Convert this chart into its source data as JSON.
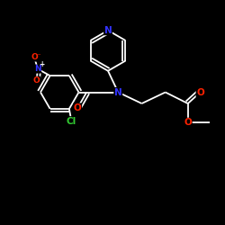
{
  "background": "#000000",
  "bond_color": "#ffffff",
  "bond_width": 1.3,
  "atom_colors": {
    "N": "#3333ff",
    "O": "#ff2200",
    "Cl": "#33cc33",
    "C": "#ffffff"
  },
  "font_size": 6.5,
  "fig_size": [
    2.5,
    2.5
  ],
  "dpi": 100
}
